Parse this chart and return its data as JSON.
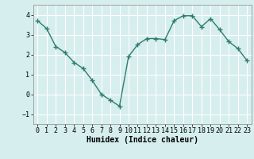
{
  "x": [
    0,
    1,
    2,
    3,
    4,
    5,
    6,
    7,
    8,
    9,
    10,
    11,
    12,
    13,
    14,
    15,
    16,
    17,
    18,
    19,
    20,
    21,
    22,
    23
  ],
  "y": [
    3.7,
    3.3,
    2.4,
    2.1,
    1.6,
    1.3,
    0.7,
    0.0,
    -0.3,
    -0.6,
    1.9,
    2.5,
    2.8,
    2.8,
    2.75,
    3.7,
    3.95,
    3.95,
    3.4,
    3.8,
    3.25,
    2.65,
    2.3,
    1.7
  ],
  "line_color": "#2e7d6e",
  "marker": "+",
  "marker_size": 4,
  "marker_linewidth": 1.0,
  "background_color": "#d6eeee",
  "grid_color": "#ffffff",
  "grid_linewidth": 0.8,
  "xlabel": "Humidex (Indice chaleur)",
  "ylabel": "",
  "title": "",
  "ylim": [
    -1.5,
    4.5
  ],
  "xlim": [
    -0.5,
    23.5
  ],
  "yticks": [
    -1,
    0,
    1,
    2,
    3,
    4
  ],
  "xtick_labels": [
    "0",
    "1",
    "2",
    "3",
    "4",
    "5",
    "6",
    "7",
    "8",
    "9",
    "10",
    "11",
    "12",
    "13",
    "14",
    "15",
    "16",
    "17",
    "18",
    "19",
    "20",
    "21",
    "22",
    "23"
  ],
  "xticks": [
    0,
    1,
    2,
    3,
    4,
    5,
    6,
    7,
    8,
    9,
    10,
    11,
    12,
    13,
    14,
    15,
    16,
    17,
    18,
    19,
    20,
    21,
    22,
    23
  ],
  "tick_fontsize": 6,
  "xlabel_fontsize": 7,
  "line_width": 1.0
}
